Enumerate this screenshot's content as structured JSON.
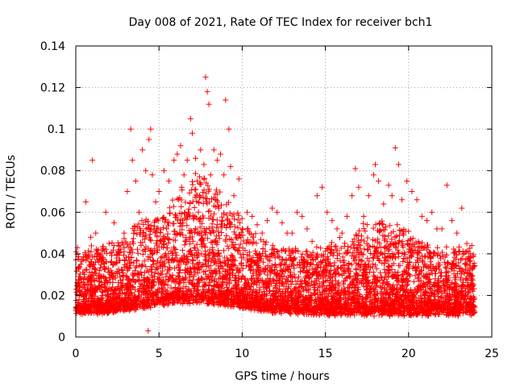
{
  "chart_data": {
    "type": "scatter",
    "title": "Day 008 of 2021, Rate Of TEC Index for receiver bch1",
    "xlabel": "GPS time / hours",
    "ylabel": "ROTI / TECUs",
    "xlim": [
      0,
      25
    ],
    "ylim": [
      0,
      0.14
    ],
    "xticks": [
      "0",
      "5",
      "10",
      "15",
      "20",
      "25"
    ],
    "yticks": [
      "0",
      "0.02",
      "0.04",
      "0.06",
      "0.08",
      "0.1",
      "0.12",
      "0.14"
    ],
    "grid": true,
    "marker": "+",
    "color": "#ff0000",
    "series": [
      {
        "x": [
          0.1,
          0.3,
          0.6,
          0.9,
          1.0,
          1.2,
          1.5,
          1.8,
          2.0,
          2.3,
          2.6,
          2.9,
          3.1,
          3.3,
          3.4,
          3.6,
          3.8,
          4.0,
          4.2,
          4.4,
          4.5,
          4.6,
          4.8,
          5.0,
          5.3,
          5.6,
          5.9,
          6.1,
          6.3,
          6.5,
          6.7,
          6.9,
          7.0,
          7.2,
          7.3,
          7.5,
          7.7,
          7.8,
          7.9,
          8.0,
          8.1,
          8.3,
          8.5,
          8.7,
          8.9,
          9.0,
          9.2,
          9.3,
          9.5,
          9.8,
          10.0,
          10.3,
          10.6,
          10.9,
          11.2,
          11.5,
          11.8,
          12.1,
          12.4,
          12.7,
          13.0,
          13.3,
          13.6,
          13.9,
          14.2,
          14.5,
          14.8,
          15.1,
          15.4,
          15.7,
          16.0,
          16.3,
          16.6,
          16.8,
          17.0,
          17.3,
          17.6,
          17.9,
          18.0,
          18.2,
          18.5,
          18.8,
          19.0,
          19.2,
          19.4,
          19.6,
          19.9,
          20.2,
          20.5,
          20.8,
          21.1,
          21.4,
          21.7,
          22.0,
          22.3,
          22.6,
          22.9,
          23.2,
          23.5,
          23.8
        ],
        "y": [
          0.043,
          0.035,
          0.065,
          0.048,
          0.085,
          0.05,
          0.04,
          0.06,
          0.045,
          0.055,
          0.042,
          0.05,
          0.07,
          0.1,
          0.085,
          0.075,
          0.06,
          0.09,
          0.08,
          0.095,
          0.1,
          0.078,
          0.065,
          0.07,
          0.08,
          0.075,
          0.085,
          0.088,
          0.092,
          0.078,
          0.085,
          0.105,
          0.098,
          0.086,
          0.075,
          0.09,
          0.083,
          0.125,
          0.118,
          0.112,
          0.078,
          0.09,
          0.085,
          0.088,
          0.078,
          0.114,
          0.1,
          0.082,
          0.068,
          0.076,
          0.052,
          0.06,
          0.058,
          0.054,
          0.05,
          0.056,
          0.062,
          0.06,
          0.055,
          0.05,
          0.05,
          0.06,
          0.058,
          0.052,
          0.046,
          0.068,
          0.072,
          0.06,
          0.056,
          0.052,
          0.05,
          0.058,
          0.068,
          0.081,
          0.072,
          0.058,
          0.068,
          0.078,
          0.083,
          0.075,
          0.064,
          0.073,
          0.068,
          0.091,
          0.083,
          0.066,
          0.075,
          0.07,
          0.066,
          0.058,
          0.056,
          0.06,
          0.052,
          0.052,
          0.073,
          0.056,
          0.05,
          0.062,
          0.045,
          0.044
        ]
      },
      {
        "x": [
          0.2,
          0.7,
          1.1,
          1.6,
          2.2,
          2.7,
          3.2,
          3.7,
          4.1,
          4.35,
          4.7,
          5.2,
          5.7,
          6.2,
          6.6,
          7.1,
          7.6,
          8.2,
          8.6,
          9.1,
          9.6,
          10.2,
          10.8,
          11.4,
          12.0,
          12.6,
          13.2,
          13.8,
          14.4,
          15.0,
          15.6,
          16.2,
          16.9,
          17.5,
          18.1,
          18.7,
          19.3,
          19.8,
          20.4,
          21.0,
          21.6,
          22.2,
          22.8,
          23.4,
          23.9
        ],
        "y": [
          0.018,
          0.022,
          0.017,
          0.02,
          0.024,
          0.021,
          0.028,
          0.03,
          0.027,
          0.003,
          0.025,
          0.022,
          0.029,
          0.031,
          0.032,
          0.03,
          0.034,
          0.031,
          0.028,
          0.03,
          0.027,
          0.025,
          0.022,
          0.024,
          0.021,
          0.022,
          0.02,
          0.019,
          0.021,
          0.018,
          0.017,
          0.022,
          0.02,
          0.023,
          0.021,
          0.025,
          0.027,
          0.022,
          0.019,
          0.02,
          0.018,
          0.017,
          0.019,
          0.02,
          0.018
        ]
      }
    ]
  }
}
